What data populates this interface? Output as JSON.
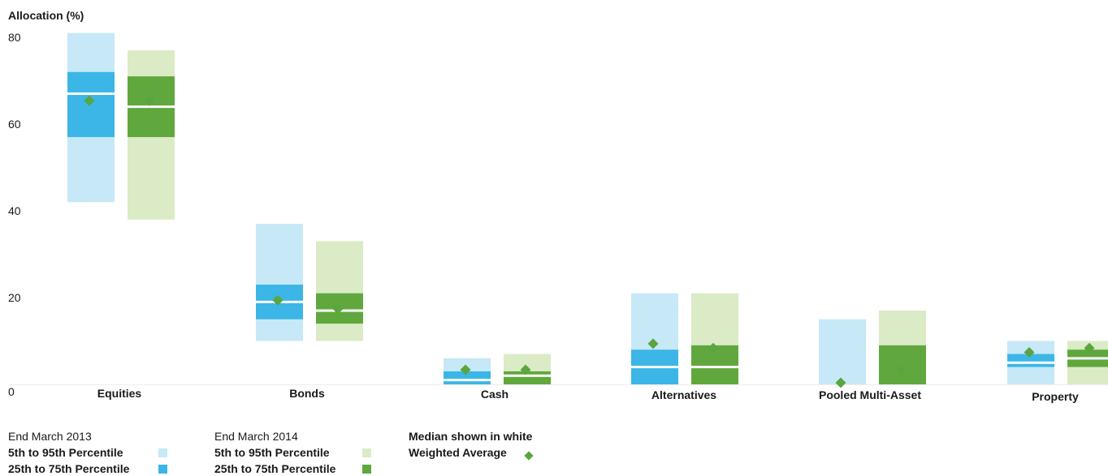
{
  "chart_data": {
    "type": "range-bar",
    "ylabel": "Allocation (%)",
    "ylim": [
      0,
      80
    ],
    "yticks": [
      0,
      20,
      40,
      60,
      80
    ],
    "categories": [
      "Equities",
      "Bonds",
      "Cash",
      "Alternatives",
      "Pooled Multi-Asset",
      "Property"
    ],
    "series": [
      {
        "name": "End March 2013",
        "light_color": "#c7e8f6",
        "dark_color": "#3bb6e7",
        "p5": [
          42,
          10,
          0,
          0,
          0,
          0
        ],
        "p95": [
          81,
          37,
          6,
          21,
          15,
          10
        ],
        "p25": [
          57,
          15,
          0,
          0,
          0,
          4
        ],
        "p75": [
          72,
          23,
          3,
          8,
          0,
          7
        ],
        "median": [
          67,
          19,
          1,
          4,
          0,
          5
        ],
        "weighted_average": [
          65,
          19,
          3,
          9,
          0,
          7
        ]
      },
      {
        "name": "End March 2014",
        "light_color": "#dbebc6",
        "dark_color": "#60a83d",
        "p5": [
          38,
          10,
          0,
          0,
          0,
          0
        ],
        "p95": [
          77,
          33,
          7,
          21,
          17,
          10
        ],
        "p25": [
          57,
          14,
          0,
          0,
          0,
          4
        ],
        "p75": [
          71,
          21,
          3,
          9,
          9,
          8
        ],
        "median": [
          64,
          17,
          2,
          4,
          0,
          6
        ],
        "weighted_average": [
          65,
          17,
          3,
          8,
          3,
          8
        ]
      }
    ],
    "legend": {
      "series_2013": {
        "title": "End March 2013",
        "light": "5th to 95th Percentile",
        "dark": "25th to 75th Percentile"
      },
      "series_2014": {
        "title": "End March 2014",
        "light": "5th to 95th Percentile",
        "dark": "25th to 75th Percentile"
      },
      "median_note": "Median shown in white",
      "weighted_label": "Weighted Average"
    },
    "colors": {
      "diamond": "#5aa53f",
      "median_line": "#ffffff"
    },
    "grid": false
  }
}
